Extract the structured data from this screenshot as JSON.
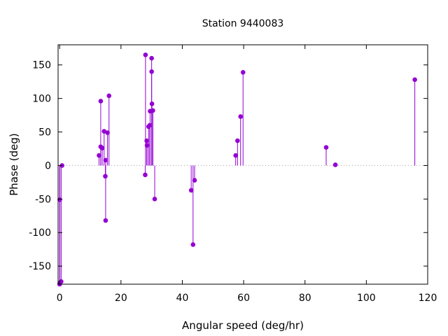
{
  "chart_data": {
    "type": "scatter",
    "style": "impulses with points",
    "title": "Station 9440083",
    "xlabel": "Angular speed (deg/hr)",
    "ylabel": "Phase (deg)",
    "xlim": [
      -0.5,
      120
    ],
    "ylim": [
      -177,
      180
    ],
    "xticks": [
      0,
      20,
      40,
      60,
      80,
      100,
      120
    ],
    "yticks": [
      150,
      100,
      50,
      0,
      -50,
      -100,
      -150
    ],
    "zero_line": "dotted",
    "grid": false,
    "color": "#9400d3",
    "points": [
      {
        "x": 0.0,
        "y": -177
      },
      {
        "x": 0.04,
        "y": -51
      },
      {
        "x": 0.08,
        "y": -175
      },
      {
        "x": 0.5,
        "y": -173
      },
      {
        "x": 0.8,
        "y": 0
      },
      {
        "x": 12.85,
        "y": 15
      },
      {
        "x": 13.4,
        "y": 28
      },
      {
        "x": 13.4,
        "y": 96
      },
      {
        "x": 13.9,
        "y": 26
      },
      {
        "x": 14.5,
        "y": 51
      },
      {
        "x": 14.9,
        "y": -16
      },
      {
        "x": 15.0,
        "y": 8
      },
      {
        "x": 15.0,
        "y": -82
      },
      {
        "x": 15.6,
        "y": 49
      },
      {
        "x": 16.1,
        "y": 104
      },
      {
        "x": 27.9,
        "y": -14
      },
      {
        "x": 28.0,
        "y": 165
      },
      {
        "x": 28.4,
        "y": 37
      },
      {
        "x": 28.5,
        "y": 30
      },
      {
        "x": 29.0,
        "y": 58
      },
      {
        "x": 29.4,
        "y": 60
      },
      {
        "x": 29.5,
        "y": 81
      },
      {
        "x": 30.0,
        "y": 160
      },
      {
        "x": 30.0,
        "y": 140
      },
      {
        "x": 30.1,
        "y": 92
      },
      {
        "x": 30.4,
        "y": 82
      },
      {
        "x": 31.0,
        "y": -50
      },
      {
        "x": 42.9,
        "y": -37
      },
      {
        "x": 43.5,
        "y": -118
      },
      {
        "x": 44.0,
        "y": -22
      },
      {
        "x": 57.4,
        "y": 15
      },
      {
        "x": 58.0,
        "y": 37
      },
      {
        "x": 59.0,
        "y": 73
      },
      {
        "x": 59.8,
        "y": 139
      },
      {
        "x": 86.9,
        "y": 27
      },
      {
        "x": 89.9,
        "y": 1
      },
      {
        "x": 115.8,
        "y": 128
      }
    ]
  }
}
